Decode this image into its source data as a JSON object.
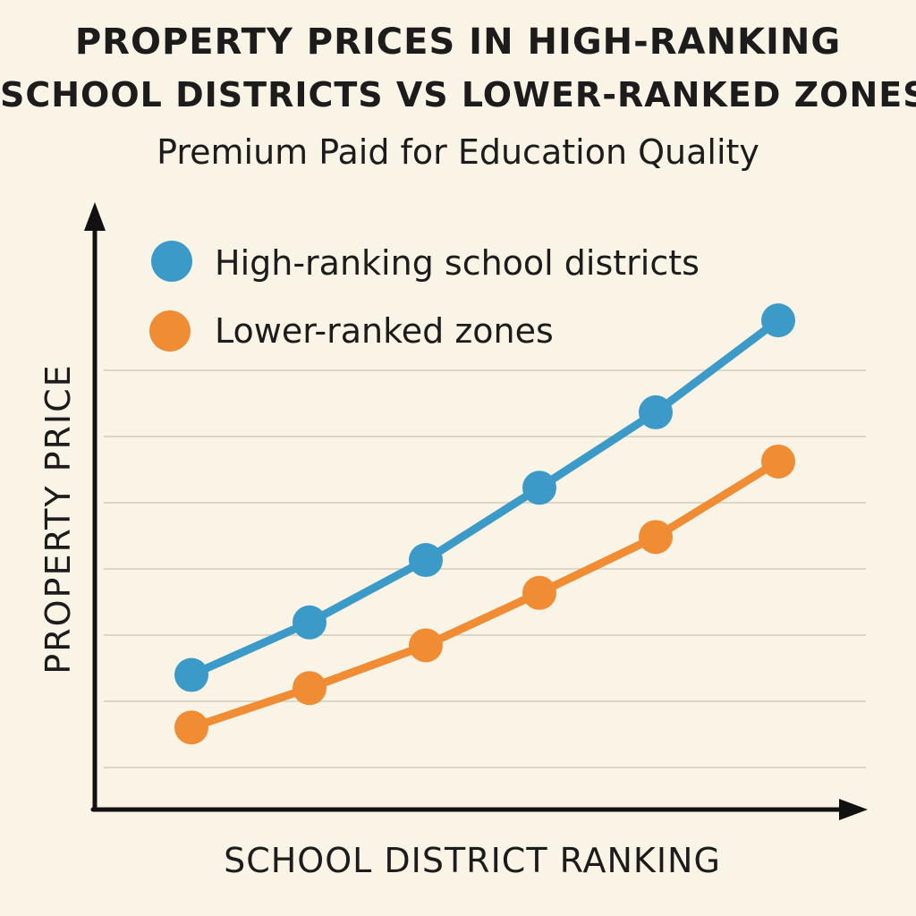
{
  "colors": {
    "background": "#f9f4e6",
    "high_series": "#3b9ac8",
    "low_series": "#ef8c34",
    "axis": "#111111",
    "grid": "#ddd5c6"
  },
  "chart_data": {
    "type": "line",
    "title_line1": "PROPERTY PRICES IN HIGH-RANKING",
    "title_line2": "SCHOOL DISTRICTS VS LOWER-RANKED ZONES",
    "subtitle": "Premium Paid for Education Quality",
    "xlabel": "SCHOOL DISTRICT RANKING",
    "ylabel": "PROPERTY PRICE",
    "x": [
      1,
      2,
      3,
      4,
      5,
      6
    ],
    "ylim": [
      0,
      8
    ],
    "grid": true,
    "legend_position": "top-left",
    "series": [
      {
        "name": "High-ranking school districts",
        "color": "#3b9ac8",
        "values": [
          2.05,
          2.85,
          3.8,
          4.9,
          6.05,
          7.45
        ]
      },
      {
        "name": "Lower-ranked zones",
        "color": "#ef8c34",
        "values": [
          1.25,
          1.85,
          2.5,
          3.3,
          4.15,
          5.3
        ]
      }
    ]
  }
}
